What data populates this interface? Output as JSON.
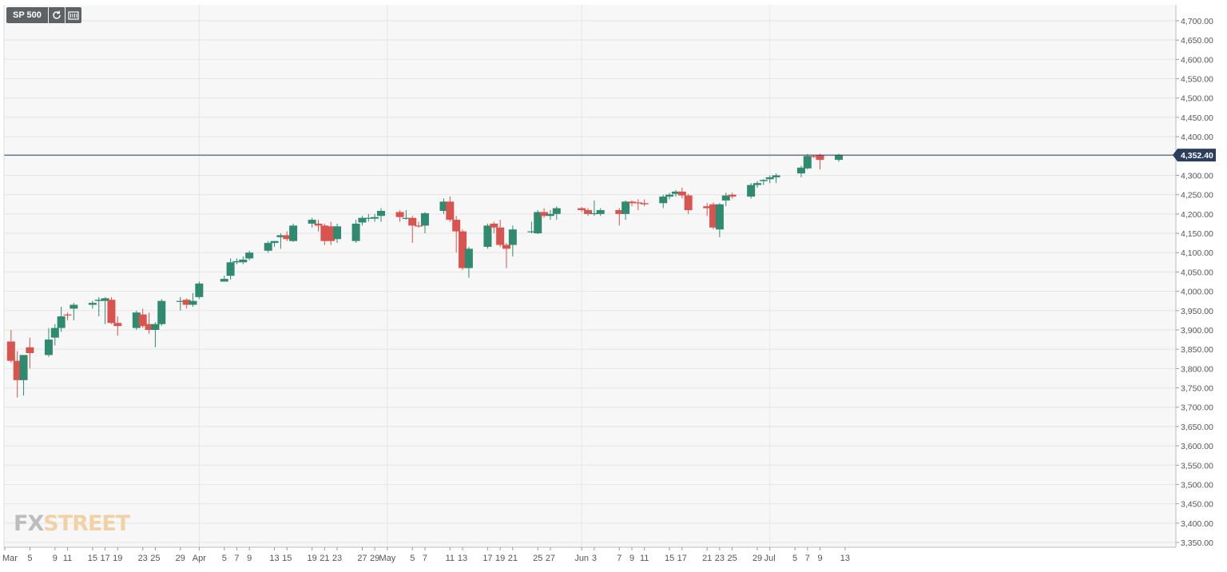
{
  "toolbar": {
    "symbol": "SP 500",
    "refresh_icon": "refresh-icon",
    "chart_type_icon": "candlestick-settings-icon"
  },
  "watermark": {
    "fx": "FX",
    "street": "STREET"
  },
  "colors": {
    "up": "#2f8a6f",
    "down": "#d9534f",
    "price_line": "#2c3e5c",
    "grid": "#e6e6e6",
    "plot_bg": "#f7f7f7"
  },
  "chart_data": {
    "type": "candlestick",
    "title": "SP 500",
    "ylim": [
      3330,
      4730
    ],
    "y_ticks": [
      "4,700.00",
      "4,650.00",
      "4,600.00",
      "4,550.00",
      "4,500.00",
      "4,450.00",
      "4,400.00",
      "4,350.00",
      "4,300.00",
      "4,250.00",
      "4,200.00",
      "4,150.00",
      "4,100.00",
      "4,050.00",
      "4,000.00",
      "3,950.00",
      "3,900.00",
      "3,850.00",
      "3,800.00",
      "3,750.00",
      "3,700.00",
      "3,650.00",
      "3,600.00",
      "3,550.00",
      "3,500.00",
      "3,450.00",
      "3,400.00",
      "3,350.00"
    ],
    "x_ticks": [
      "Mar",
      "5",
      "9",
      "11",
      "15",
      "17",
      "19",
      "23",
      "25",
      "29",
      "Apr",
      "5",
      "7",
      "9",
      "13",
      "15",
      "19",
      "21",
      "23",
      "27",
      "29",
      "May",
      "5",
      "7",
      "11",
      "13",
      "17",
      "19",
      "21",
      "25",
      "27",
      "Jun",
      "3",
      "7",
      "9",
      "11",
      "15",
      "17",
      "21",
      "23",
      "25",
      "29",
      "Jul",
      "5",
      "7",
      "9",
      "13"
    ],
    "last_price": 4352.4,
    "last_price_label": "4,352.40",
    "grid": true,
    "candles": [
      {
        "date": "2021-03-02",
        "o": 3870,
        "h": 3900,
        "l": 3815,
        "c": 3820
      },
      {
        "date": "2021-03-03",
        "o": 3820,
        "h": 3845,
        "l": 3725,
        "c": 3770
      },
      {
        "date": "2021-03-04",
        "o": 3770,
        "h": 3835,
        "l": 3730,
        "c": 3835
      },
      {
        "date": "2021-03-05",
        "o": 3855,
        "h": 3880,
        "l": 3800,
        "c": 3840
      },
      {
        "date": "2021-03-08",
        "o": 3835,
        "h": 3905,
        "l": 3830,
        "c": 3875
      },
      {
        "date": "2021-03-09",
        "o": 3880,
        "h": 3915,
        "l": 3860,
        "c": 3905
      },
      {
        "date": "2021-03-10",
        "o": 3905,
        "h": 3960,
        "l": 3895,
        "c": 3935
      },
      {
        "date": "2021-03-11",
        "o": 3940,
        "h": 3945,
        "l": 3925,
        "c": 3938
      },
      {
        "date": "2021-03-12",
        "o": 3955,
        "h": 3970,
        "l": 3925,
        "c": 3965
      },
      {
        "date": "2021-03-15",
        "o": 3965,
        "h": 3975,
        "l": 3955,
        "c": 3970
      },
      {
        "date": "2021-03-16",
        "o": 3975,
        "h": 3985,
        "l": 3935,
        "c": 3978
      },
      {
        "date": "2021-03-17",
        "o": 3975,
        "h": 3985,
        "l": 3915,
        "c": 3982
      },
      {
        "date": "2021-03-18",
        "o": 3978,
        "h": 3985,
        "l": 3915,
        "c": 3918
      },
      {
        "date": "2021-03-19",
        "o": 3918,
        "h": 3935,
        "l": 3885,
        "c": 3910
      },
      {
        "date": "2021-03-22",
        "o": 3905,
        "h": 3950,
        "l": 3900,
        "c": 3945
      },
      {
        "date": "2021-03-23",
        "o": 3940,
        "h": 3955,
        "l": 3905,
        "c": 3910
      },
      {
        "date": "2021-03-24",
        "o": 3915,
        "h": 3945,
        "l": 3890,
        "c": 3900
      },
      {
        "date": "2021-03-25",
        "o": 3900,
        "h": 3920,
        "l": 3855,
        "c": 3915
      },
      {
        "date": "2021-03-26",
        "o": 3915,
        "h": 3980,
        "l": 3910,
        "c": 3975
      },
      {
        "date": "2021-03-29",
        "o": 3975,
        "h": 3985,
        "l": 3950,
        "c": 3975
      },
      {
        "date": "2021-03-30",
        "o": 3978,
        "h": 3982,
        "l": 3955,
        "c": 3965
      },
      {
        "date": "2021-03-31",
        "o": 3965,
        "h": 3995,
        "l": 3960,
        "c": 3975
      },
      {
        "date": "2021-04-01",
        "o": 3985,
        "h": 4025,
        "l": 3980,
        "c": 4020
      },
      {
        "date": "2021-04-05",
        "o": 4025,
        "h": 4040,
        "l": 4025,
        "c": 4032
      },
      {
        "date": "2021-04-06",
        "o": 4040,
        "h": 4085,
        "l": 4030,
        "c": 4075
      },
      {
        "date": "2021-04-07",
        "o": 4075,
        "h": 4085,
        "l": 4070,
        "c": 4078
      },
      {
        "date": "2021-04-08",
        "o": 4075,
        "h": 4090,
        "l": 4070,
        "c": 4082
      },
      {
        "date": "2021-04-09",
        "o": 4085,
        "h": 4105,
        "l": 4080,
        "c": 4100
      },
      {
        "date": "2021-04-12",
        "o": 4105,
        "h": 4130,
        "l": 4100,
        "c": 4125
      },
      {
        "date": "2021-04-13",
        "o": 4125,
        "h": 4130,
        "l": 4115,
        "c": 4130
      },
      {
        "date": "2021-04-14",
        "o": 4140,
        "h": 4150,
        "l": 4110,
        "c": 4145
      },
      {
        "date": "2021-04-15",
        "o": 4145,
        "h": 4155,
        "l": 4130,
        "c": 4135
      },
      {
        "date": "2021-04-16",
        "o": 4130,
        "h": 4175,
        "l": 4128,
        "c": 4170
      },
      {
        "date": "2021-04-19",
        "o": 4175,
        "h": 4190,
        "l": 4165,
        "c": 4185
      },
      {
        "date": "2021-04-20",
        "o": 4175,
        "h": 4185,
        "l": 4155,
        "c": 4170
      },
      {
        "date": "2021-04-21",
        "o": 4170,
        "h": 4175,
        "l": 4120,
        "c": 4130
      },
      {
        "date": "2021-04-22",
        "o": 4168,
        "h": 4180,
        "l": 4120,
        "c": 4130
      },
      {
        "date": "2021-04-23",
        "o": 4135,
        "h": 4175,
        "l": 4125,
        "c": 4168
      },
      {
        "date": "2021-04-26",
        "o": 4130,
        "h": 4185,
        "l": 4125,
        "c": 4175
      },
      {
        "date": "2021-04-27",
        "o": 4178,
        "h": 4195,
        "l": 4170,
        "c": 4190
      },
      {
        "date": "2021-04-28",
        "o": 4188,
        "h": 4200,
        "l": 4180,
        "c": 4190
      },
      {
        "date": "2021-04-29",
        "o": 4188,
        "h": 4200,
        "l": 4180,
        "c": 4192
      },
      {
        "date": "2021-04-30",
        "o": 4195,
        "h": 4215,
        "l": 4180,
        "c": 4208
      },
      {
        "date": "2021-05-03",
        "o": 4205,
        "h": 4210,
        "l": 4180,
        "c": 4192
      },
      {
        "date": "2021-05-04",
        "o": 4190,
        "h": 4210,
        "l": 4185,
        "c": 4190
      },
      {
        "date": "2021-05-05",
        "o": 4190,
        "h": 4195,
        "l": 4125,
        "c": 4170
      },
      {
        "date": "2021-05-06",
        "o": 4170,
        "h": 4180,
        "l": 4165,
        "c": 4168
      },
      {
        "date": "2021-05-07",
        "o": 4170,
        "h": 4205,
        "l": 4150,
        "c": 4202
      },
      {
        "date": "2021-05-10",
        "o": 4208,
        "h": 4240,
        "l": 4200,
        "c": 4232
      },
      {
        "date": "2021-05-11",
        "o": 4232,
        "h": 4245,
        "l": 4180,
        "c": 4185
      },
      {
        "date": "2021-05-12",
        "o": 4185,
        "h": 4195,
        "l": 4100,
        "c": 4155
      },
      {
        "date": "2021-05-13",
        "o": 4155,
        "h": 4160,
        "l": 4055,
        "c": 4060
      },
      {
        "date": "2021-05-14",
        "o": 4060,
        "h": 4115,
        "l": 4035,
        "c": 4110
      },
      {
        "date": "2021-05-17",
        "o": 4115,
        "h": 4175,
        "l": 4110,
        "c": 4170
      },
      {
        "date": "2021-05-18",
        "o": 4175,
        "h": 4180,
        "l": 4150,
        "c": 4165
      },
      {
        "date": "2021-05-19",
        "o": 4165,
        "h": 4185,
        "l": 4115,
        "c": 4120
      },
      {
        "date": "2021-05-20",
        "o": 4120,
        "h": 4125,
        "l": 4060,
        "c": 4110
      },
      {
        "date": "2021-05-21",
        "o": 4120,
        "h": 4170,
        "l": 4090,
        "c": 4160
      },
      {
        "date": "2021-05-24",
        "o": 4155,
        "h": 4180,
        "l": 4150,
        "c": 4155
      },
      {
        "date": "2021-05-25",
        "o": 4150,
        "h": 4210,
        "l": 4148,
        "c": 4205
      },
      {
        "date": "2021-05-26",
        "o": 4205,
        "h": 4215,
        "l": 4190,
        "c": 4195
      },
      {
        "date": "2021-05-27",
        "o": 4195,
        "h": 4210,
        "l": 4185,
        "c": 4200
      },
      {
        "date": "2021-05-28",
        "o": 4200,
        "h": 4220,
        "l": 4185,
        "c": 4215
      },
      {
        "date": "2021-06-01",
        "o": 4215,
        "h": 4218,
        "l": 4205,
        "c": 4210
      },
      {
        "date": "2021-06-02",
        "o": 4210,
        "h": 4215,
        "l": 4195,
        "c": 4200
      },
      {
        "date": "2021-06-03",
        "o": 4200,
        "h": 4235,
        "l": 4195,
        "c": 4202
      },
      {
        "date": "2021-06-04",
        "o": 4200,
        "h": 4215,
        "l": 4195,
        "c": 4210
      },
      {
        "date": "2021-06-07",
        "o": 4210,
        "h": 4215,
        "l": 4170,
        "c": 4200
      },
      {
        "date": "2021-06-08",
        "o": 4200,
        "h": 4235,
        "l": 4185,
        "c": 4232
      },
      {
        "date": "2021-06-09",
        "o": 4232,
        "h": 4235,
        "l": 4220,
        "c": 4228
      },
      {
        "date": "2021-06-10",
        "o": 4230,
        "h": 4238,
        "l": 4210,
        "c": 4228
      },
      {
        "date": "2021-06-11",
        "o": 4228,
        "h": 4238,
        "l": 4220,
        "c": 4225
      },
      {
        "date": "2021-06-14",
        "o": 4228,
        "h": 4250,
        "l": 4215,
        "c": 4245
      },
      {
        "date": "2021-06-15",
        "o": 4245,
        "h": 4255,
        "l": 4238,
        "c": 4250
      },
      {
        "date": "2021-06-16",
        "o": 4252,
        "h": 4262,
        "l": 4245,
        "c": 4258
      },
      {
        "date": "2021-06-17",
        "o": 4258,
        "h": 4268,
        "l": 4240,
        "c": 4248
      },
      {
        "date": "2021-06-18",
        "o": 4248,
        "h": 4252,
        "l": 4200,
        "c": 4210
      },
      {
        "date": "2021-06-21",
        "o": 4220,
        "h": 4228,
        "l": 4195,
        "c": 4215
      },
      {
        "date": "2021-06-22",
        "o": 4225,
        "h": 4230,
        "l": 4160,
        "c": 4165
      },
      {
        "date": "2021-06-23",
        "o": 4160,
        "h": 4228,
        "l": 4140,
        "c": 4225
      },
      {
        "date": "2021-06-24",
        "o": 4235,
        "h": 4255,
        "l": 4220,
        "c": 4248
      },
      {
        "date": "2021-06-25",
        "o": 4250,
        "h": 4255,
        "l": 4240,
        "c": 4245
      },
      {
        "date": "2021-06-28",
        "o": 4245,
        "h": 4280,
        "l": 4240,
        "c": 4275
      },
      {
        "date": "2021-06-29",
        "o": 4275,
        "h": 4285,
        "l": 4268,
        "c": 4280
      },
      {
        "date": "2021-06-30",
        "o": 4285,
        "h": 4290,
        "l": 4275,
        "c": 4288
      },
      {
        "date": "2021-07-01",
        "o": 4290,
        "h": 4300,
        "l": 4280,
        "c": 4295
      },
      {
        "date": "2021-07-02",
        "o": 4295,
        "h": 4305,
        "l": 4280,
        "c": 4300
      },
      {
        "date": "2021-07-06",
        "o": 4305,
        "h": 4325,
        "l": 4295,
        "c": 4320
      },
      {
        "date": "2021-07-07",
        "o": 4318,
        "h": 4355,
        "l": 4315,
        "c": 4350
      },
      {
        "date": "2021-07-08",
        "o": 4350,
        "h": 4352,
        "l": 4345,
        "c": 4348
      },
      {
        "date": "2021-07-09",
        "o": 4352,
        "h": 4356,
        "l": 4315,
        "c": 4340
      },
      {
        "date": "2021-07-12",
        "o": 4340,
        "h": 4356,
        "l": 4335,
        "c": 4352.4
      }
    ]
  }
}
